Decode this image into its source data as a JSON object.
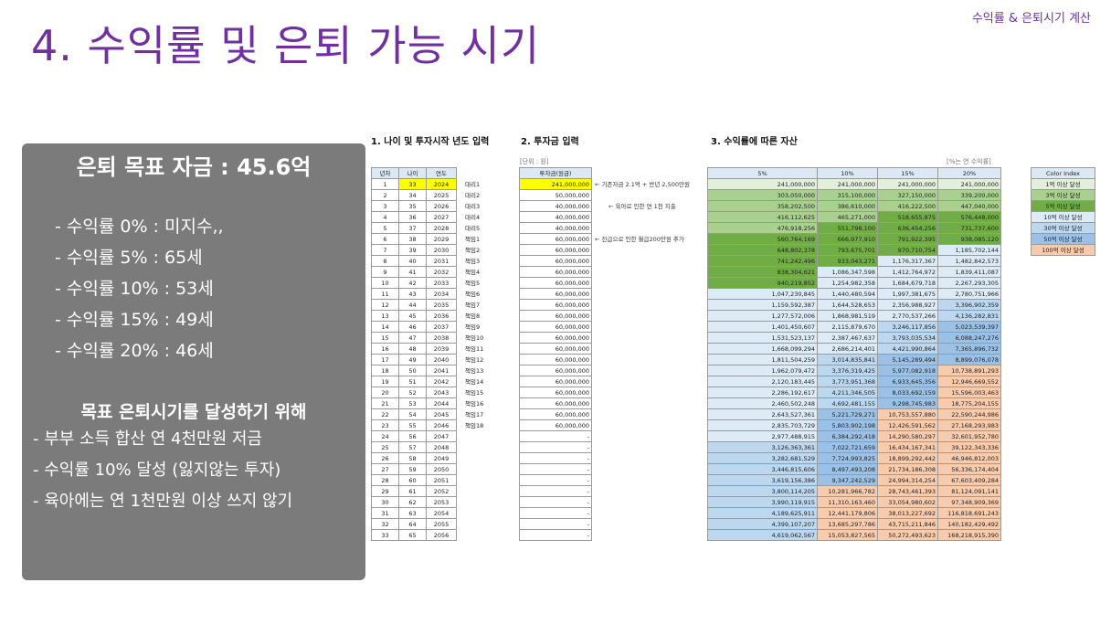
{
  "header": {
    "corner_label": "수익률 & 은퇴시기 계산",
    "title": "4. 수익률 및 은퇴 가능 시기"
  },
  "summary_panel": {
    "heading": "은퇴 목표 자금 : 45.6억",
    "rates": [
      "- 수익률    0% : 미지수,,",
      "- 수익률 5% : 65세",
      "- 수익률 10% : 53세",
      "- 수익률 15% : 49세",
      "- 수익률 20% : 46세"
    ],
    "goal_heading": "목표 은퇴시기를 달성하기 위해",
    "goal_lines": [
      "- 부부 소득 합산 연 4천만원 저금",
      "- 수익률 10% 달성 (잃지않는 투자)",
      "- 육아에는 연 1천만원 이상 쓰지 않기"
    ]
  },
  "section1": {
    "title": "1. 나이 및 투자시작 년도 입력",
    "headers": [
      "년차",
      "나이",
      "연도"
    ],
    "ranks": [
      "대리1",
      "대리2",
      "대리3",
      "대리4",
      "대리5",
      "책임1",
      "책임2",
      "책임3",
      "책임4",
      "책임5",
      "책임6",
      "책임7",
      "책임8",
      "책임9",
      "책임10",
      "책임11",
      "책임12",
      "책임13",
      "책임14",
      "책임15",
      "책임16",
      "책임17",
      "책임18"
    ]
  },
  "section2": {
    "title": "2. 투자금 입력",
    "unit": "[단위 : 원]",
    "header": "투자금(원금)",
    "values": [
      "241,000,000",
      "50,000,000",
      "40,000,000",
      "40,000,000",
      "40,000,000",
      "60,000,000",
      "60,000,000",
      "60,000,000",
      "60,000,000",
      "60,000,000",
      "60,000,000",
      "60,000,000",
      "60,000,000",
      "60,000,000",
      "60,000,000",
      "60,000,000",
      "60,000,000",
      "60,000,000",
      "60,000,000",
      "60,000,000",
      "60,000,000",
      "60,000,000",
      "60,000,000",
      "-",
      "-",
      "-",
      "-",
      "-",
      "-",
      "-",
      "-",
      "-",
      "-"
    ],
    "notes": [
      "← 기존자금 2.1억 + 반년 2,500만원",
      "← 육아로 인한 연 1천 지출",
      "← 진급으로 인한 월급200만원 추가"
    ]
  },
  "section3": {
    "title": "3. 수익률에 따른 자산",
    "unit": "[%는 연 수익률]",
    "headers": [
      "5%",
      "10%",
      "15%",
      "20%"
    ],
    "rows": [
      [
        "241,000,000",
        "241,000,000",
        "241,000,000",
        "241,000,000"
      ],
      [
        "303,050,000",
        "315,100,000",
        "327,150,000",
        "339,200,000"
      ],
      [
        "358,202,500",
        "386,610,000",
        "416,222,500",
        "447,040,000"
      ],
      [
        "416,112,625",
        "465,271,000",
        "518,655,875",
        "576,448,000"
      ],
      [
        "476,918,256",
        "551,798,100",
        "636,454,256",
        "731,737,600"
      ],
      [
        "560,764,169",
        "666,977,910",
        "791,922,395",
        "938,085,120"
      ],
      [
        "648,802,378",
        "793,675,701",
        "970,710,754",
        "1,185,702,144"
      ],
      [
        "741,242,496",
        "933,043,271",
        "1,176,317,367",
        "1,482,842,573"
      ],
      [
        "838,304,621",
        "1,086,347,598",
        "1,412,764,972",
        "1,839,411,087"
      ],
      [
        "940,219,852",
        "1,254,982,358",
        "1,684,679,718",
        "2,267,293,305"
      ],
      [
        "1,047,230,845",
        "1,440,480,594",
        "1,997,381,675",
        "2,780,751,966"
      ],
      [
        "1,159,592,387",
        "1,644,528,653",
        "2,356,988,927",
        "3,396,902,359"
      ],
      [
        "1,277,572,006",
        "1,868,981,519",
        "2,770,537,266",
        "4,136,282,831"
      ],
      [
        "1,401,450,607",
        "2,115,879,670",
        "3,246,117,856",
        "5,023,539,397"
      ],
      [
        "1,531,523,137",
        "2,387,467,637",
        "3,793,035,534",
        "6,088,247,276"
      ],
      [
        "1,668,099,294",
        "2,686,214,401",
        "4,421,990,864",
        "7,365,896,732"
      ],
      [
        "1,811,504,259",
        "3,014,835,841",
        "5,145,289,494",
        "8,899,076,078"
      ],
      [
        "1,962,079,472",
        "3,376,319,425",
        "5,977,082,918",
        "10,738,891,293"
      ],
      [
        "2,120,183,445",
        "3,773,951,368",
        "6,933,645,356",
        "12,946,669,552"
      ],
      [
        "2,286,192,617",
        "4,211,346,505",
        "8,033,692,159",
        "15,596,003,463"
      ],
      [
        "2,460,502,248",
        "4,692,481,155",
        "9,298,745,983",
        "18,775,204,155"
      ],
      [
        "2,643,527,361",
        "5,221,729,271",
        "10,753,557,880",
        "22,590,244,986"
      ],
      [
        "2,835,703,729",
        "5,803,902,198",
        "12,426,591,562",
        "27,168,293,983"
      ],
      [
        "2,977,488,915",
        "6,384,292,418",
        "14,290,580,297",
        "32,601,952,780"
      ],
      [
        "3,126,363,361",
        "7,022,721,659",
        "16,434,167,341",
        "39,122,343,336"
      ],
      [
        "3,282,681,529",
        "7,724,993,825",
        "18,899,292,442",
        "46,946,812,003"
      ],
      [
        "3,446,815,606",
        "8,497,493,208",
        "21,734,186,308",
        "56,336,174,404"
      ],
      [
        "3,619,156,386",
        "9,347,242,529",
        "24,994,314,254",
        "67,603,409,284"
      ],
      [
        "3,800,114,205",
        "10,281,966,782",
        "28,743,461,393",
        "81,124,091,141"
      ],
      [
        "3,990,119,915",
        "11,310,163,460",
        "33,054,980,602",
        "97,348,909,369"
      ],
      [
        "4,189,625,911",
        "12,441,179,806",
        "38,013,227,692",
        "116,818,691,243"
      ],
      [
        "4,399,107,207",
        "13,685,297,786",
        "43,715,211,846",
        "140,182,429,492"
      ],
      [
        "4,619,062,567",
        "15,053,827,565",
        "50,272,493,623",
        "168,218,915,390"
      ]
    ]
  },
  "legend": {
    "title": "Color Index",
    "items": [
      {
        "label": "1억 이상 달성",
        "color": "#e2efda"
      },
      {
        "label": "3억 이상 달성",
        "color": "#a9d08e"
      },
      {
        "label": "5억 이상 달성",
        "color": "#70ad47"
      },
      {
        "label": "10억 이상 달성",
        "color": "#ddebf7"
      },
      {
        "label": "30억 이상 달성",
        "color": "#bdd7ee"
      },
      {
        "label": "50억 이상 달성",
        "color": "#9bc2e6"
      },
      {
        "label": "100억 이상 달성",
        "color": "#f8cbad"
      }
    ]
  }
}
